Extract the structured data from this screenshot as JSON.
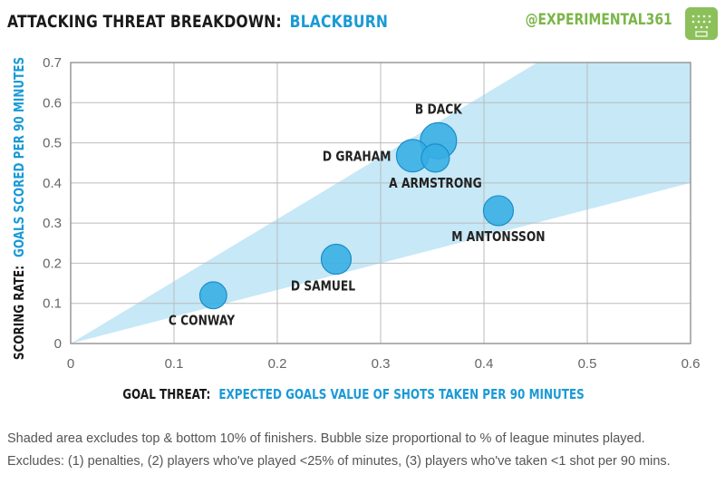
{
  "header": {
    "title_prefix": "ATTACKING THREAT BREAKDOWN:",
    "team": "BLACKBURN",
    "handle": "@EXPERIMENTAL361"
  },
  "colors": {
    "bubble": "#36aee5",
    "bubble_stroke": "#1c8cc8",
    "band": "#c6e8f7",
    "team": "#1a9ad6",
    "handle": "#7ab648",
    "grid": "#bbbbbb"
  },
  "chart_data": {
    "type": "scatter",
    "title": "ATTACKING THREAT BREAKDOWN: BLACKBURN",
    "xlabel_bold": "GOAL THREAT:",
    "xlabel_rest": "EXPECTED GOALS VALUE OF SHOTS TAKEN PER 90 MINUTES",
    "ylabel_bold": "SCORING RATE:",
    "ylabel_rest": "GOALS SCORED PER 90 MINUTES",
    "xlim": [
      0,
      0.6
    ],
    "ylim": [
      0,
      0.7
    ],
    "xticks": [
      "0",
      "0.1",
      "0.2",
      "0.3",
      "0.4",
      "0.5",
      "0.6"
    ],
    "yticks": [
      "0",
      "0.1",
      "0.2",
      "0.3",
      "0.4",
      "0.5",
      "0.6",
      "0.7"
    ],
    "grid": true,
    "band": {
      "lower_slope": 0.667,
      "upper_slope": 1.55
    },
    "points": [
      {
        "name": "C CONWAY",
        "x": 0.138,
        "y": 0.12,
        "size": 0.55,
        "label_pos": "below-left"
      },
      {
        "name": "D SAMUEL",
        "x": 0.257,
        "y": 0.21,
        "size": 0.68,
        "label_pos": "below-left"
      },
      {
        "name": "D GRAHAM",
        "x": 0.331,
        "y": 0.468,
        "size": 0.8,
        "label_pos": "left"
      },
      {
        "name": "A ARMSTRONG",
        "x": 0.353,
        "y": 0.462,
        "size": 0.6,
        "label_pos": "below"
      },
      {
        "name": "B DACK",
        "x": 0.356,
        "y": 0.505,
        "size": 1.0,
        "label_pos": "above"
      },
      {
        "name": "M ANTONSSON",
        "x": 0.414,
        "y": 0.331,
        "size": 0.68,
        "label_pos": "below"
      }
    ]
  },
  "footnotes": {
    "line1": "Shaded area excludes top & bottom  10% of finishers. Bubble size proportional to % of league minutes played.",
    "line2": "Excludes: (1) penalties, (2) players who've played <25% of minutes, (3) players who've taken <1 shot per 90 mins."
  }
}
